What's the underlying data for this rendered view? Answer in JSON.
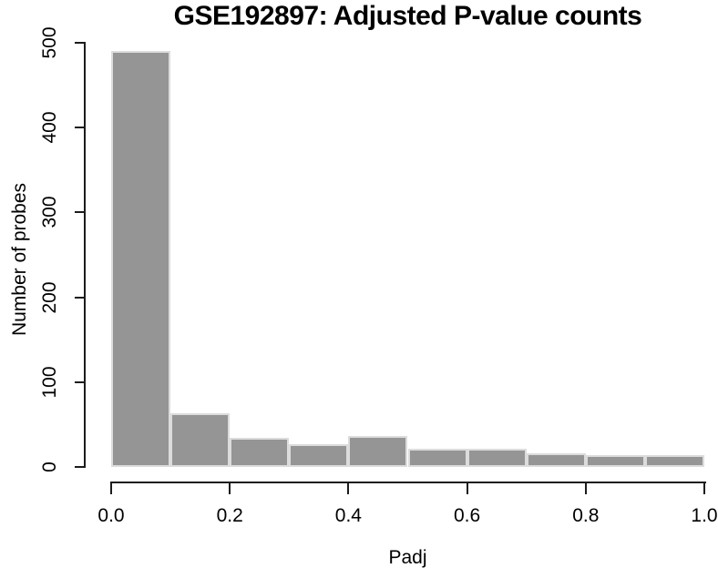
{
  "figure": {
    "background": "#ffffff"
  },
  "chart_data": {
    "type": "bar",
    "subtype": "histogram",
    "title": "GSE192897: Adjusted P-value counts",
    "xlabel": "Padj",
    "ylabel": "Number of probes",
    "bin_edges": [
      0.0,
      0.1,
      0.2,
      0.3,
      0.4,
      0.5,
      0.6,
      0.7,
      0.8,
      0.9,
      1.0
    ],
    "values": [
      490,
      63,
      34,
      27,
      36,
      22,
      21,
      16,
      14,
      14
    ],
    "xlim": [
      0.0,
      1.0
    ],
    "ylim": [
      0,
      500
    ],
    "x_ticks": [
      0.0,
      0.2,
      0.4,
      0.6,
      0.8,
      1.0
    ],
    "x_tick_labels": [
      "0.0",
      "0.2",
      "0.4",
      "0.6",
      "0.8",
      "1.0"
    ],
    "y_ticks": [
      0,
      100,
      200,
      300,
      400,
      500
    ],
    "y_tick_labels": [
      "0",
      "100",
      "200",
      "300",
      "400",
      "500"
    ],
    "grid": false,
    "legend_position": "none",
    "bar_color": "#959595",
    "bar_border_color": "#dcdcdc",
    "axis_color": "#1c1c1c",
    "text_color": "#000000"
  }
}
